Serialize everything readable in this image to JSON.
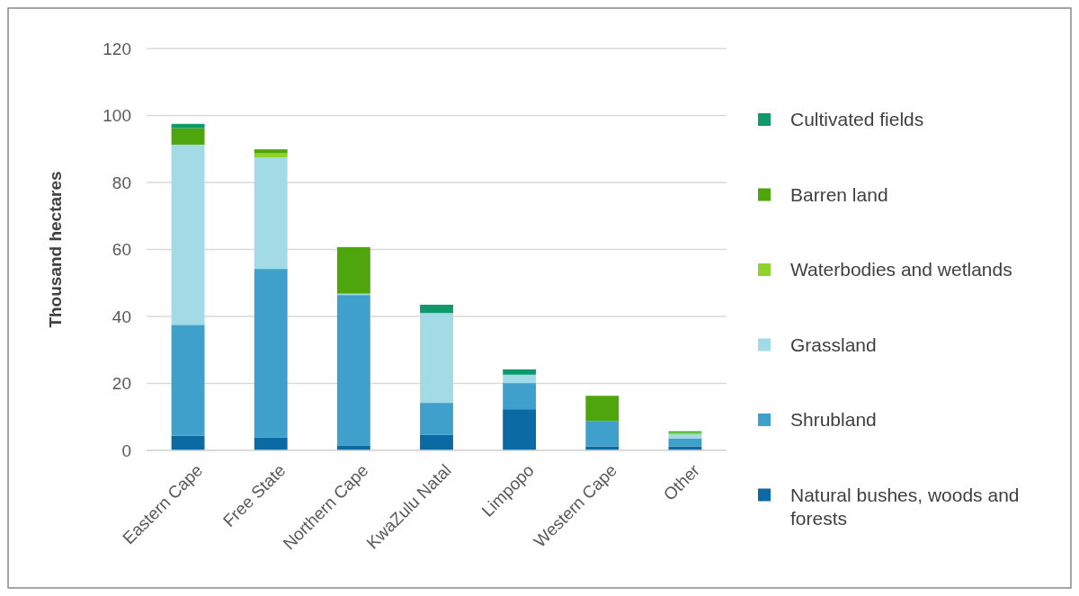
{
  "chart_data": {
    "type": "bar",
    "stacked": true,
    "ylabel": "Thousand hectares",
    "categories": [
      "Eastern Cape",
      "Free State",
      "Northern Cape",
      "KwaZulu Natal",
      "Limpopo",
      "Western Cape",
      "Other"
    ],
    "series": [
      {
        "name": "Natural bushes, woods and forests",
        "color": "#0b6aa3",
        "values": [
          4.4,
          3.8,
          1.5,
          4.6,
          12.3,
          1.2,
          1.2
        ]
      },
      {
        "name": "Shrubland",
        "color": "#3fa1cb",
        "values": [
          33.1,
          50.4,
          44.9,
          9.6,
          7.8,
          7.6,
          2.4
        ]
      },
      {
        "name": "Grassland",
        "color": "#a2dbe5",
        "values": [
          53.8,
          33.3,
          0.4,
          26.8,
          2.5,
          0,
          1.2
        ]
      },
      {
        "name": "Waterbodies and wetlands",
        "color": "#8fd22a",
        "values": [
          0,
          1.2,
          0,
          0,
          0,
          0,
          0.6
        ]
      },
      {
        "name": "Barren land",
        "color": "#4ea60c",
        "values": [
          4.9,
          1.2,
          13.9,
          0,
          0,
          7.5,
          0
        ]
      },
      {
        "name": "Cultivated fields",
        "color": "#109a6c",
        "values": [
          1.3,
          0,
          0,
          2.5,
          1.6,
          0,
          0.3
        ]
      }
    ],
    "ylim": [
      0,
      120
    ],
    "yticks": [
      0,
      20,
      40,
      60,
      80,
      100,
      120
    ],
    "grid": "y",
    "legend": "right"
  }
}
